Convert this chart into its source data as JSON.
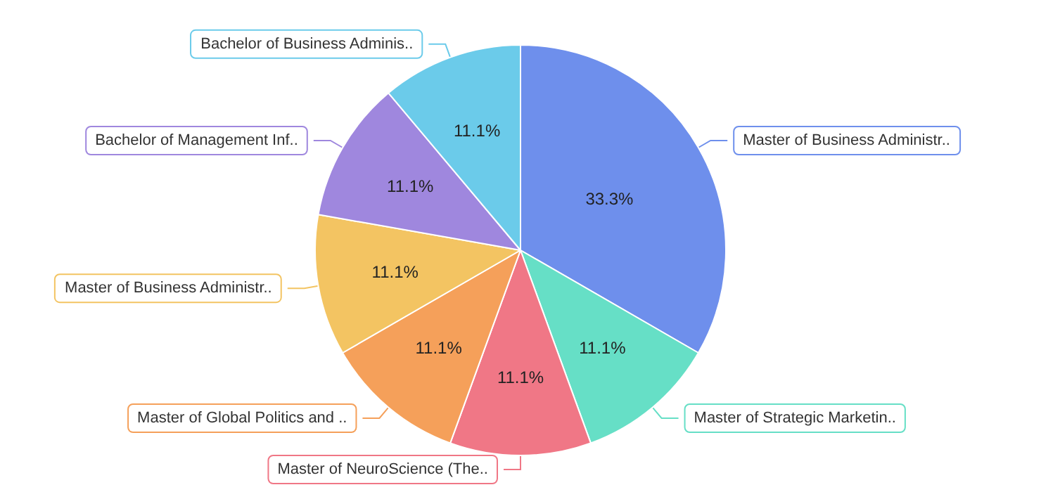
{
  "chart_data": {
    "type": "pie",
    "categories": [
      "Master of Business Administr..",
      "Master of Strategic Marketin..",
      "Master of NeuroScience (The..",
      "Master of Global Politics and ..",
      "Master of Business Administr..",
      "Bachelor of Management Inf..",
      "Bachelor of Business Adminis.."
    ],
    "values": [
      33.3,
      11.1,
      11.1,
      11.1,
      11.1,
      11.1,
      11.1
    ],
    "value_labels": [
      "33.3%",
      "11.1%",
      "11.1%",
      "11.1%",
      "11.1%",
      "11.1%",
      "11.1%"
    ],
    "colors": [
      "#6e8fec",
      "#66dfc6",
      "#f07786",
      "#f5a05a",
      "#f3c462",
      "#9f87de",
      "#6bcbea"
    ]
  }
}
